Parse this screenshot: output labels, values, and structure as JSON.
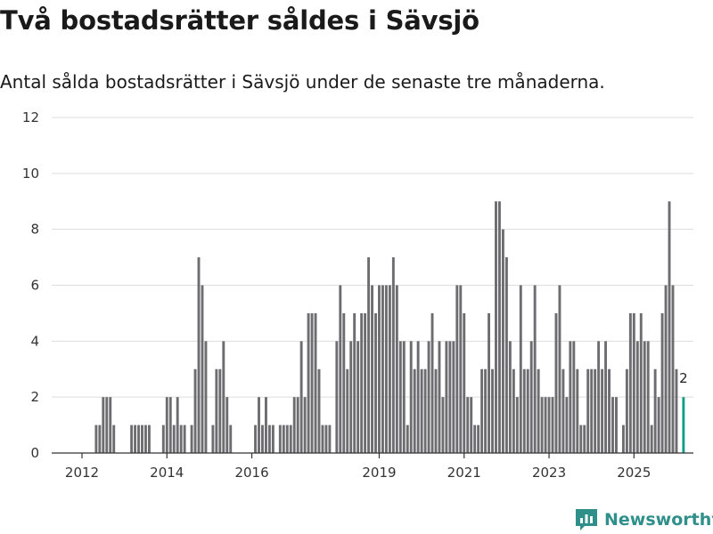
{
  "colors": {
    "bar": "#6d6c71",
    "highlight": "#119c8a",
    "brand": "#2f8f8a"
  },
  "brand": {
    "name": "Newsworthy",
    "icon": "newsworthy-logo-icon"
  },
  "chart_data": {
    "type": "bar",
    "title": "Två bostadsrätter såldes i Sävsjö",
    "subtitle": "Antal sålda bostadsrätter i Sävsjö under de senaste tre månaderna.",
    "xlabel": "",
    "ylabel": "",
    "ylim": [
      0,
      12
    ],
    "yticks": [
      0,
      2,
      4,
      6,
      8,
      10,
      12
    ],
    "xticks": [
      {
        "label": "2012",
        "index": 0
      },
      {
        "label": "2014",
        "index": 24
      },
      {
        "label": "2016",
        "index": 48
      },
      {
        "label": "2019",
        "index": 84
      },
      {
        "label": "2021",
        "index": 108
      },
      {
        "label": "2023",
        "index": 132
      },
      {
        "label": "2025",
        "index": 156
      }
    ],
    "start": "2012-01",
    "values": [
      0,
      0,
      0,
      0,
      1,
      1,
      2,
      2,
      2,
      1,
      0,
      0,
      0,
      0,
      1,
      1,
      1,
      1,
      1,
      1,
      0,
      0,
      0,
      1,
      2,
      2,
      1,
      2,
      1,
      1,
      0,
      1,
      3,
      7,
      6,
      4,
      0,
      1,
      3,
      3,
      4,
      2,
      1,
      0,
      0,
      0,
      0,
      0,
      0,
      1,
      2,
      1,
      2,
      1,
      1,
      0,
      1,
      1,
      1,
      1,
      2,
      2,
      4,
      2,
      5,
      5,
      5,
      3,
      1,
      1,
      1,
      0,
      4,
      6,
      5,
      3,
      4,
      5,
      4,
      5,
      5,
      7,
      6,
      5,
      6,
      6,
      6,
      6,
      7,
      6,
      4,
      4,
      1,
      4,
      3,
      4,
      3,
      3,
      4,
      5,
      3,
      4,
      2,
      4,
      4,
      4,
      6,
      6,
      5,
      2,
      2,
      1,
      1,
      3,
      3,
      5,
      3,
      9,
      9,
      8,
      7,
      4,
      3,
      2,
      6,
      3,
      3,
      4,
      6,
      3,
      2,
      2,
      2,
      2,
      5,
      6,
      3,
      2,
      4,
      4,
      3,
      1,
      1,
      3,
      3,
      3,
      4,
      3,
      4,
      3,
      2,
      2,
      0,
      1,
      3,
      5,
      5,
      4,
      5,
      4,
      4,
      1,
      3,
      2,
      5,
      6,
      9,
      6,
      3,
      0,
      2
    ],
    "highlight_index": 170,
    "annotation": {
      "index": 170,
      "text": "2"
    }
  }
}
